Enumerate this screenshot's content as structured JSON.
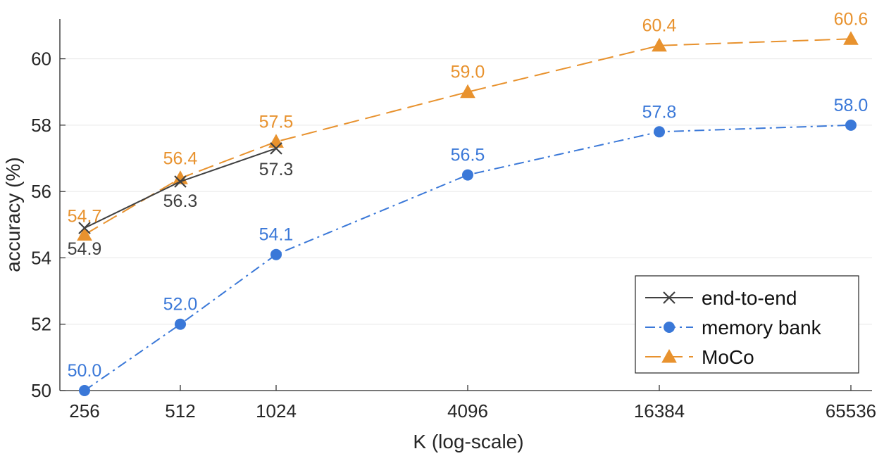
{
  "chart_data": {
    "type": "line",
    "xlabel": "K (log-scale)",
    "ylabel": "accuracy (%)",
    "x_scale": "log2",
    "x_ticks": [
      "256",
      "512",
      "1024",
      "4096",
      "16384",
      "65536"
    ],
    "y_ticks": [
      "50",
      "52",
      "54",
      "56",
      "58",
      "60"
    ],
    "ylim": [
      50,
      61.2
    ],
    "grid": "horizontal",
    "legend_position": "bottom-right",
    "series": [
      {
        "name": "end-to-end",
        "color": "#404040",
        "line_style": "solid",
        "marker": "x",
        "x": [
          256,
          512,
          1024
        ],
        "y": [
          54.9,
          56.3,
          57.3
        ],
        "labels": [
          "54.9",
          "56.3",
          "57.3"
        ]
      },
      {
        "name": "memory bank",
        "color": "#3a78d8",
        "line_style": "dashdot",
        "marker": "circle",
        "x": [
          256,
          512,
          1024,
          4096,
          16384,
          65536
        ],
        "y": [
          50.0,
          52.0,
          54.1,
          56.5,
          57.8,
          58.0
        ],
        "labels": [
          "50.0",
          "52.0",
          "54.1",
          "56.5",
          "57.8",
          "58.0"
        ]
      },
      {
        "name": "MoCo",
        "color": "#e8922e",
        "line_style": "dashed",
        "marker": "triangle",
        "x": [
          256,
          512,
          1024,
          4096,
          16384,
          65536
        ],
        "y": [
          54.7,
          56.4,
          57.5,
          59.0,
          60.4,
          60.6
        ],
        "labels": [
          "54.7",
          "56.4",
          "57.5",
          "59.0",
          "60.4",
          "60.6"
        ]
      }
    ]
  }
}
